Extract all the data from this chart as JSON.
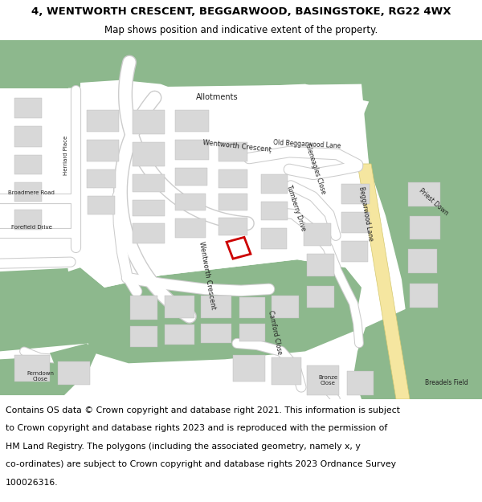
{
  "title_line1": "4, WENTWORTH CRESCENT, BEGGARWOOD, BASINGSTOKE, RG22 4WX",
  "title_line2": "Map shows position and indicative extent of the property.",
  "footer_lines": [
    "Contains OS data © Crown copyright and database right 2021. This information is subject",
    "to Crown copyright and database rights 2023 and is reproduced with the permission of",
    "HM Land Registry. The polygons (including the associated geometry, namely x, y",
    "co-ordinates) are subject to Crown copyright and database rights 2023 Ordnance Survey",
    "100026316."
  ],
  "title_fontsize": 9.5,
  "subtitle_fontsize": 8.5,
  "footer_fontsize": 7.8,
  "bg_color": "#ffffff",
  "map_bg": "#f5f5f5",
  "green": "#8db88d",
  "white": "#ffffff",
  "yellow": "#f5e6a0",
  "building": "#d8d8d8",
  "road_edge": "#cccccc",
  "red_plot": "#cc0000",
  "figsize": [
    6.0,
    6.25
  ],
  "dpi": 100
}
